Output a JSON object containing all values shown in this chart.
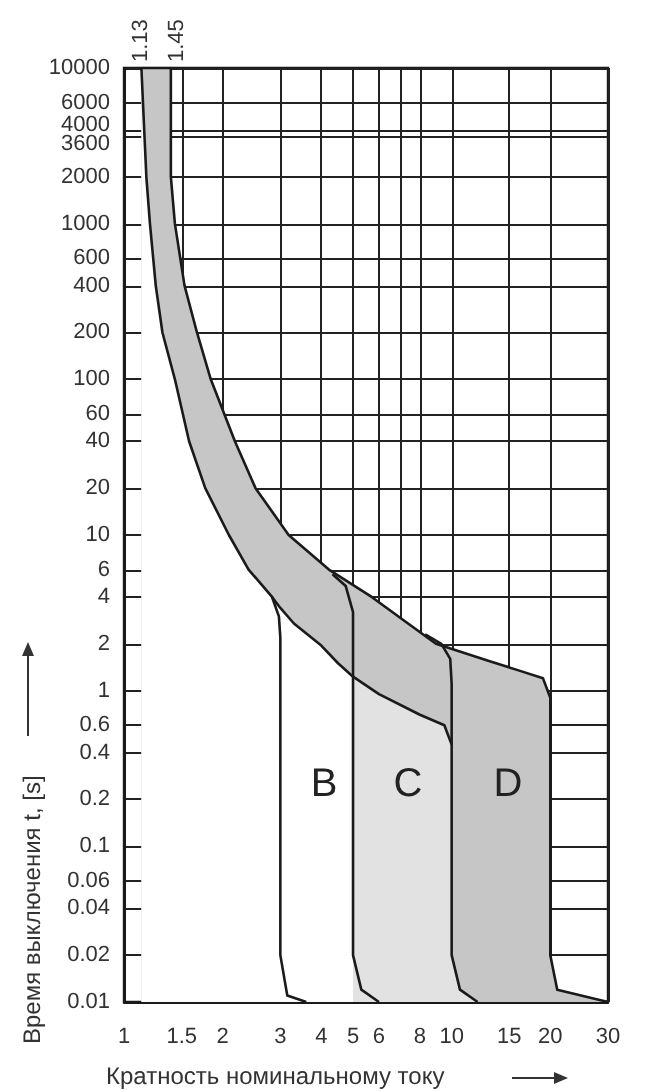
{
  "chart_data": {
    "type": "line",
    "xlabel": "Кратность номинальному току",
    "ylabel": "Время выключения t, [s]",
    "log": "xy",
    "grid": true,
    "xlim": [
      1,
      30
    ],
    "xticks": [
      1,
      1.5,
      2,
      3,
      4,
      5,
      6,
      {
        "value": 7,
        "label": null
      },
      8,
      10,
      15,
      20,
      30
    ],
    "ylim": [
      0.01,
      10000
    ],
    "yticks": [
      0.01,
      0.02,
      0.04,
      0.06,
      0.1,
      0.2,
      0.4,
      0.6,
      1,
      2,
      4,
      6,
      10,
      20,
      40,
      60,
      100,
      200,
      400,
      600,
      1000,
      2000,
      3600,
      4000,
      6000,
      10000
    ],
    "annotations": [
      {
        "text": "1.13",
        "x": 1.13,
        "y": 10000
      },
      {
        "text": "1.45",
        "x": 1.45,
        "y": 10000
      },
      "B",
      "C",
      "D"
    ],
    "series": [
      {
        "type": "area",
        "color": "#c6c6c6",
        "x": [
          1.13,
          1.39,
          1.39,
          1.43,
          1.53,
          1.67,
          1.84,
          2.18,
          2.52,
          3.18,
          4.22,
          5.7,
          8.95,
          13,
          16,
          19,
          20,
          20,
          21,
          30
        ],
        "values": [
          10000,
          10000,
          2000,
          1000,
          400,
          200,
          100,
          40,
          20,
          10,
          6,
          4,
          2,
          1.55,
          1.35,
          1.2,
          0.9,
          0.02,
          0.012,
          0.01
        ]
      },
      {
        "type": "area",
        "color": "#ffffff",
        "x": [
          2.83,
          3,
          3.3,
          4,
          4.5,
          5
        ],
        "values": [
          4,
          3.4,
          2.7,
          1.95,
          1.5,
          1.23
        ]
      },
      {
        "type": "area",
        "color": "#e2e2e2",
        "x": [
          5,
          6,
          8,
          9.5,
          10,
          10,
          10.6,
          12
        ],
        "values": [
          1.23,
          0.95,
          0.7,
          0.6,
          0.45,
          0.02,
          0.012,
          0.01
        ]
      },
      {
        "type": "area",
        "color": "#ffffff",
        "x": [
          1.13,
          1.17,
          1.2,
          1.25,
          1.31,
          1.43,
          1.58,
          1.77,
          2.09,
          2.4,
          2.83,
          2.97,
          3,
          3,
          3.15,
          3.6
        ],
        "values": [
          10000,
          2000,
          1000,
          400,
          200,
          100,
          40,
          20,
          10,
          6,
          4,
          3,
          2.2,
          0.02,
          0.011,
          0.01
        ]
      },
      {
        "color": "#1a1a1a",
        "x": [
          4.33,
          4.75,
          5,
          5,
          5.3,
          6
        ],
        "values": [
          5.6,
          4.7,
          3.2,
          0.02,
          0.012,
          0.01
        ]
      },
      {
        "color": "#1a1a1a",
        "x": [
          8.3,
          9.3,
          9.9,
          10,
          10
        ],
        "values": [
          2.3,
          2,
          1.6,
          1.1,
          0.45
        ]
      }
    ]
  }
}
